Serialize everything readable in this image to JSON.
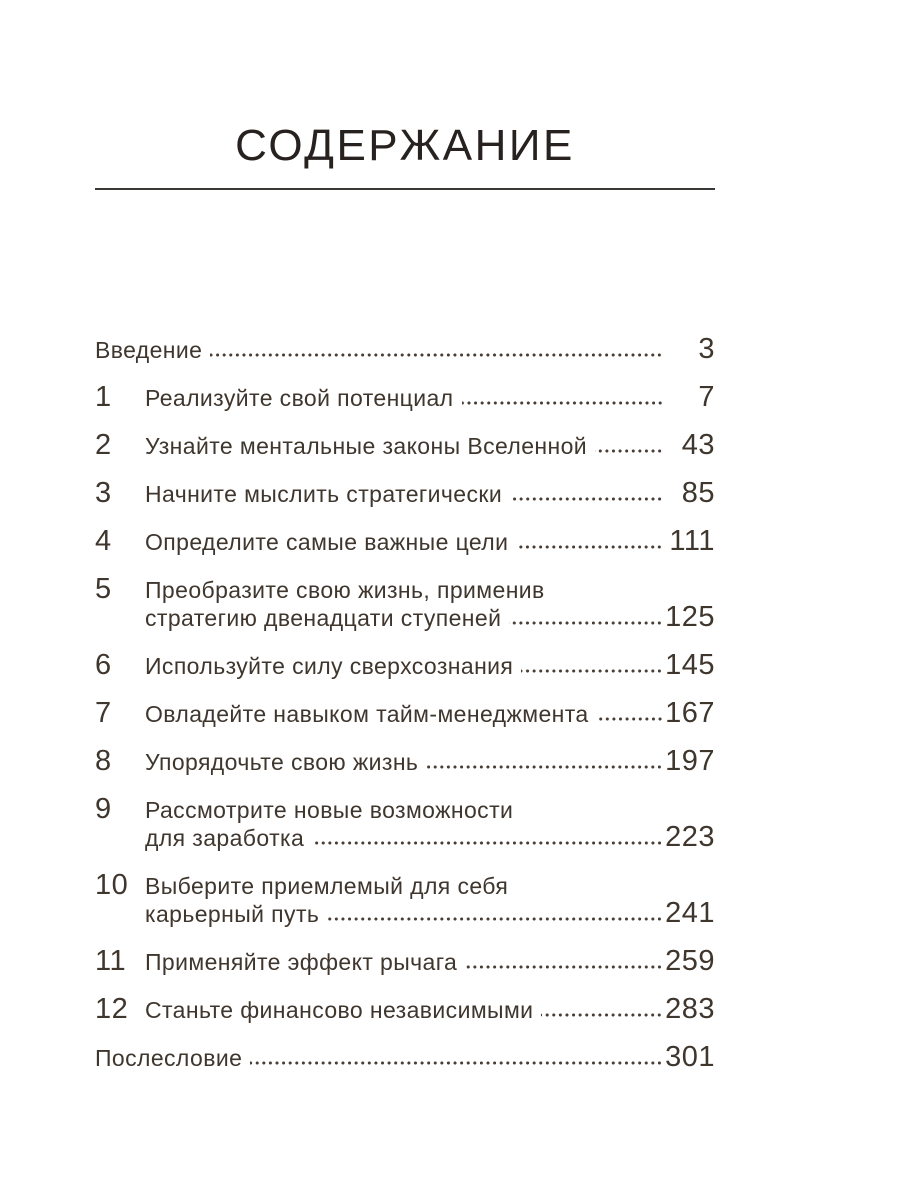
{
  "header": {
    "title": "СОДЕРЖАНИЕ"
  },
  "colors": {
    "background": "#ffffff",
    "text": "#3f362e",
    "title": "#272220",
    "rule": "#3b3734"
  },
  "toc": {
    "items": [
      {
        "num": "",
        "lines": [
          "Введение"
        ],
        "page": "3"
      },
      {
        "num": "1",
        "lines": [
          "Реализуйте свой потенциал"
        ],
        "page": "7"
      },
      {
        "num": "2",
        "lines": [
          "Узнайте ментальные законы Вселенной"
        ],
        "page": "43"
      },
      {
        "num": "3",
        "lines": [
          "Начните мыслить стратегически"
        ],
        "page": "85"
      },
      {
        "num": "4",
        "lines": [
          "Определите самые важные цели"
        ],
        "page": "111"
      },
      {
        "num": "5",
        "lines": [
          "Преобразите свою жизнь, применив",
          "стратегию двенадцати ступеней"
        ],
        "page": "125"
      },
      {
        "num": "6",
        "lines": [
          "Используйте силу сверхсознания"
        ],
        "page": "145"
      },
      {
        "num": "7",
        "lines": [
          "Овладейте навыком тайм-менеджмента"
        ],
        "page": "167"
      },
      {
        "num": "8",
        "lines": [
          "Упорядочьте свою жизнь"
        ],
        "page": "197"
      },
      {
        "num": "9",
        "lines": [
          "Рассмотрите новые возможности",
          "для заработка"
        ],
        "page": "223"
      },
      {
        "num": "10",
        "lines": [
          "Выберите приемлемый для себя",
          "карьерный путь"
        ],
        "page": "241"
      },
      {
        "num": "11",
        "lines": [
          "Применяйте эффект рычага"
        ],
        "page": "259"
      },
      {
        "num": "12",
        "lines": [
          "Станьте финансово независимыми"
        ],
        "page": "283"
      },
      {
        "num": "",
        "lines": [
          "Послесловие"
        ],
        "page": "301"
      }
    ]
  }
}
